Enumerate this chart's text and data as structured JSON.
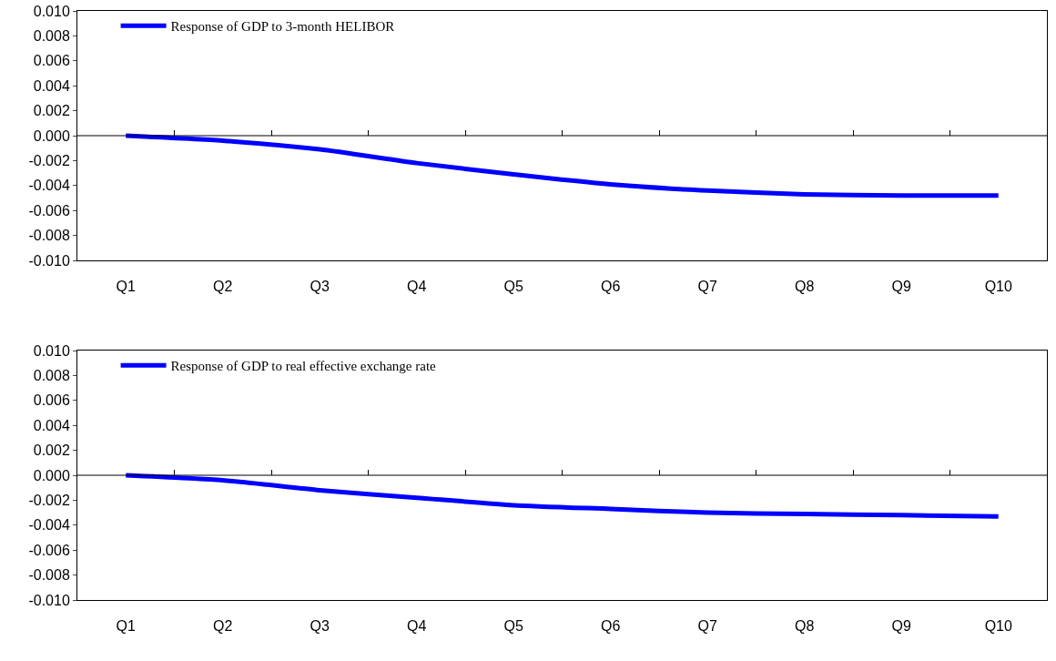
{
  "chart_data": [
    {
      "type": "line",
      "categories": [
        "Q1",
        "Q2",
        "Q3",
        "Q4",
        "Q5",
        "Q6",
        "Q7",
        "Q8",
        "Q9",
        "Q10"
      ],
      "ref_lines": [
        {
          "axis": "y",
          "value": 0,
          "color": "#000000"
        }
      ],
      "series": [
        {
          "name": "Response of GDP to 3-month HELIBOR",
          "color": "#0000ff",
          "values": [
            0,
            -0.0004,
            -0.0011,
            -0.0022,
            -0.0031,
            -0.0039,
            -0.0044,
            -0.0047,
            -0.0048,
            -0.0048
          ]
        }
      ],
      "ylim": [
        -0.01,
        0.01
      ],
      "yticks": [
        {
          "value": -0.01,
          "label": "-0.010"
        },
        {
          "value": -0.008,
          "label": "-0.008"
        },
        {
          "value": -0.006,
          "label": "-0.006"
        },
        {
          "value": -0.004,
          "label": "-0.004"
        },
        {
          "value": -0.002,
          "label": "-0.002"
        },
        {
          "value": 0,
          "label": "0.000"
        },
        {
          "value": 0.002,
          "label": "0.002"
        },
        {
          "value": 0.004,
          "label": "0.004"
        },
        {
          "value": 0.006,
          "label": "0.006"
        },
        {
          "value": 0.008,
          "label": "0.008"
        },
        {
          "value": 0.01,
          "label": "0.010"
        }
      ],
      "grid": false,
      "legend": "top left",
      "marker": "none",
      "line_style": "solid"
    },
    {
      "type": "line",
      "categories": [
        "Q1",
        "Q2",
        "Q3",
        "Q4",
        "Q5",
        "Q6",
        "Q7",
        "Q8",
        "Q9",
        "Q10"
      ],
      "ref_lines": [
        {
          "axis": "y",
          "value": 0,
          "color": "#000000"
        }
      ],
      "series": [
        {
          "name": "Response of GDP to real effective exchange rate",
          "color": "#0000ff",
          "values": [
            0,
            -0.0004,
            -0.0012,
            -0.0018,
            -0.0024,
            -0.0027,
            -0.003,
            -0.0031,
            -0.0032,
            -0.0033
          ]
        }
      ],
      "ylim": [
        -0.01,
        0.01
      ],
      "yticks": [
        {
          "value": -0.01,
          "label": "-0.010"
        },
        {
          "value": -0.008,
          "label": "-0.008"
        },
        {
          "value": -0.006,
          "label": "-0.006"
        },
        {
          "value": -0.004,
          "label": "-0.004"
        },
        {
          "value": -0.002,
          "label": "-0.002"
        },
        {
          "value": 0,
          "label": "0.000"
        },
        {
          "value": 0.002,
          "label": "0.002"
        },
        {
          "value": 0.004,
          "label": "0.004"
        },
        {
          "value": 0.006,
          "label": "0.006"
        },
        {
          "value": 0.008,
          "label": "0.008"
        },
        {
          "value": 0.01,
          "label": "0.010"
        }
      ],
      "grid": false,
      "legend": "top left",
      "marker": "none",
      "line_style": "solid"
    }
  ]
}
